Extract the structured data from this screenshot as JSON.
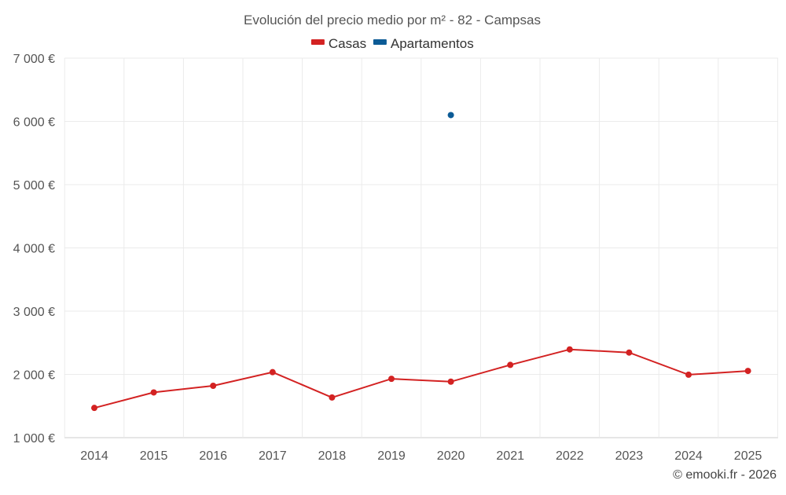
{
  "chart_data": {
    "type": "line",
    "title": "Evolución del precio medio por m² - 82 - Campsas",
    "categories": [
      "2014",
      "2015",
      "2016",
      "2017",
      "2018",
      "2019",
      "2020",
      "2021",
      "2022",
      "2023",
      "2024",
      "2025"
    ],
    "series": [
      {
        "name": "Casas",
        "color": "#d32222",
        "values": [
          1470,
          1715,
          1820,
          2035,
          1635,
          1930,
          1885,
          2150,
          2395,
          2345,
          1995,
          2055
        ]
      },
      {
        "name": "Apartamentos",
        "color": "#0c5b96",
        "values": [
          null,
          null,
          null,
          null,
          null,
          null,
          6100,
          null,
          null,
          null,
          null,
          null
        ]
      }
    ],
    "y_ticks": [
      1000,
      2000,
      3000,
      4000,
      5000,
      6000,
      7000
    ],
    "y_tick_labels": [
      "1 000 €",
      "2 000 €",
      "3 000 €",
      "4 000 €",
      "5 000 €",
      "6 000 €",
      "7 000 €"
    ],
    "ylim": [
      1000,
      7000
    ],
    "xlabel": "",
    "ylabel": "",
    "grid": true,
    "legend_position": "top-center",
    "credit": "© emooki.fr - 2026"
  },
  "colors": {
    "grid": "#ebebeb",
    "axis": "#cccccc",
    "text": "#555555"
  }
}
